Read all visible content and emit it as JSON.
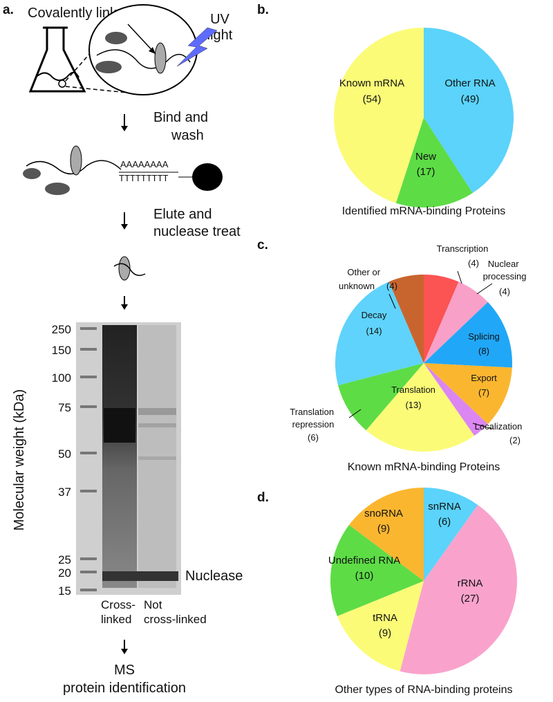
{
  "panel_a": {
    "label": "a.",
    "covalently_linked": "Covalently linked",
    "uv_light": [
      "UV",
      "light"
    ],
    "step_bind": [
      "Bind and",
      "wash"
    ],
    "poly_a": "AAAAAAAA",
    "poly_t": "TTTTTTTTT",
    "step_elute": [
      "Elute and",
      "nuclease treat"
    ],
    "gel": {
      "y_axis_title": "Molecular weight (kDa)",
      "mw_markers": [
        250,
        150,
        100,
        75,
        50,
        37,
        25,
        20,
        15
      ],
      "nuclease": "Nuclease",
      "lanes": [
        [
          "Cross-",
          "linked"
        ],
        [
          "Not",
          "cross-linked"
        ]
      ]
    },
    "final_step": [
      "MS",
      "protein identification"
    ]
  },
  "chart_data": [
    {
      "type": "pie",
      "panel": "b.",
      "title": "Identified mRNA-binding Proteins",
      "categories": [
        "Other RNA",
        "New",
        "Known mRNA"
      ],
      "values": [
        49,
        17,
        54
      ],
      "value_labels": [
        "(49)",
        "(17)",
        "(54)"
      ],
      "colors": [
        "#5bd3fb",
        "#5ddc46",
        "#fbfb78"
      ]
    },
    {
      "type": "pie",
      "panel": "c.",
      "title": "Known mRNA-binding Proteins",
      "categories": [
        "Transcription",
        "Nuclear processing",
        "Splicing",
        "Export",
        "Localization",
        "Translation",
        "Translation repression",
        "Decay",
        "Other or unknown"
      ],
      "values": [
        4,
        4,
        8,
        7,
        2,
        13,
        6,
        14,
        4
      ],
      "value_labels": [
        "(4)",
        "(4)",
        "(8)",
        "(7)",
        "(2)",
        "(13)",
        "(6)",
        "(14)",
        "(4)"
      ],
      "colors": [
        "#fc5353",
        "#f9a0c8",
        "#21a7f8",
        "#fbb630",
        "#dc86f1",
        "#fbfb78",
        "#5ddc46",
        "#5fd3fb",
        "#c8652f"
      ]
    },
    {
      "type": "pie",
      "panel": "d.",
      "title": "Other types of RNA-binding proteins",
      "categories": [
        "snRNA",
        "rRNA",
        "tRNA",
        "Undefined RNA",
        "snoRNA"
      ],
      "values": [
        6,
        27,
        9,
        10,
        9
      ],
      "value_labels": [
        "(6)",
        "(27)",
        "(9)",
        "(10)",
        "(9)"
      ],
      "colors": [
        "#5bd3fb",
        "#f9a3cc",
        "#fbfb78",
        "#5ddc46",
        "#fbb630"
      ]
    }
  ]
}
